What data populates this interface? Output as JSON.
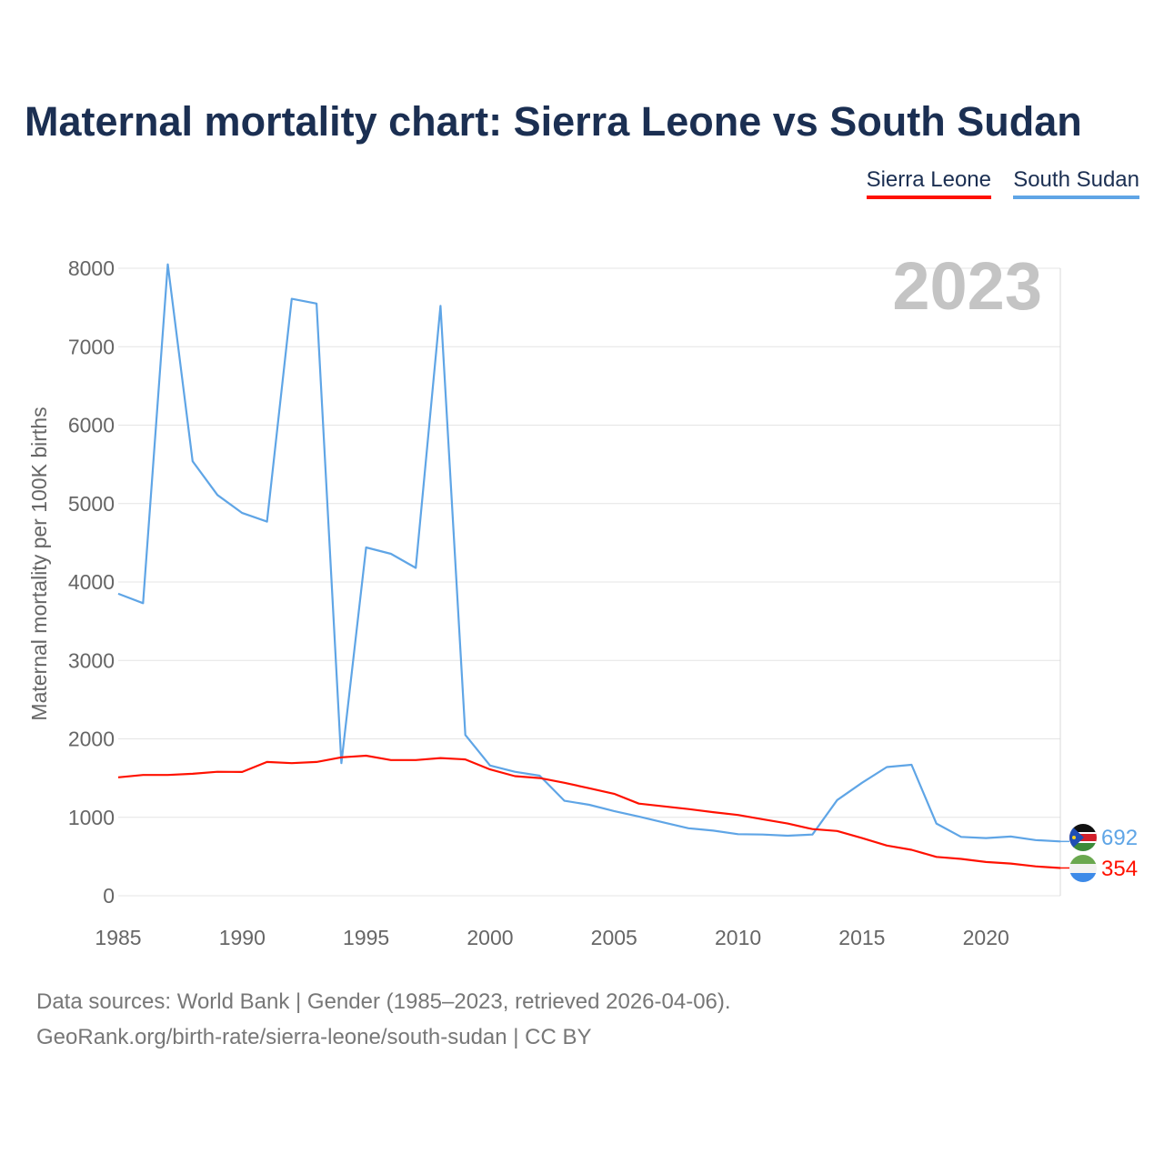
{
  "title": "Maternal mortality chart: Sierra Leone vs South Sudan",
  "legend": [
    {
      "label": "Sierra Leone",
      "color": "#ff1100"
    },
    {
      "label": "South Sudan",
      "color": "#5fa5e6"
    }
  ],
  "footer": {
    "source": "Data sources: World Bank | Gender (1985–2023, retrieved 2026-04-06).",
    "url": "GeoRank.org/birth-rate/sierra-leone/south-sudan | CC BY"
  },
  "chart_data": {
    "type": "line",
    "title": "Maternal mortality chart: Sierra Leone vs South Sudan",
    "year_label": "2023",
    "xlabel": "",
    "ylabel": "Maternal mortality per 100K births",
    "xlim": [
      1985,
      2023
    ],
    "ylim": [
      0,
      8000
    ],
    "x_ticks": [
      1985,
      1990,
      1995,
      2000,
      2005,
      2010,
      2015,
      2020
    ],
    "y_ticks": [
      0,
      1000,
      2000,
      3000,
      4000,
      5000,
      6000,
      7000,
      8000
    ],
    "x": [
      1985,
      1986,
      1987,
      1988,
      1989,
      1990,
      1991,
      1992,
      1993,
      1994,
      1995,
      1996,
      1997,
      1998,
      1999,
      2000,
      2001,
      2002,
      2003,
      2004,
      2005,
      2006,
      2007,
      2008,
      2009,
      2010,
      2011,
      2012,
      2013,
      2014,
      2015,
      2016,
      2017,
      2018,
      2019,
      2020,
      2021,
      2022,
      2023
    ],
    "series": [
      {
        "name": "Sierra Leone",
        "color": "#ff1100",
        "end_label": "354",
        "flag": "sierra-leone-flag-icon",
        "values": [
          1510,
          1540,
          1540,
          1555,
          1580,
          1578,
          1705,
          1690,
          1705,
          1765,
          1785,
          1730,
          1730,
          1755,
          1738,
          1610,
          1525,
          1500,
          1440,
          1370,
          1300,
          1175,
          1140,
          1105,
          1065,
          1030,
          975,
          920,
          850,
          825,
          735,
          640,
          585,
          495,
          470,
          430,
          410,
          375,
          354
        ]
      },
      {
        "name": "South Sudan",
        "color": "#5fa5e6",
        "end_label": "692",
        "flag": "south-sudan-flag-icon",
        "values": [
          3850,
          3730,
          8050,
          5540,
          5110,
          4880,
          4770,
          7610,
          7550,
          1690,
          4440,
          4360,
          4180,
          7520,
          2050,
          1660,
          1580,
          1530,
          1210,
          1160,
          1080,
          1010,
          935,
          860,
          830,
          785,
          780,
          765,
          780,
          1220,
          1440,
          1640,
          1670,
          920,
          750,
          735,
          755,
          710,
          692
        ]
      }
    ]
  }
}
